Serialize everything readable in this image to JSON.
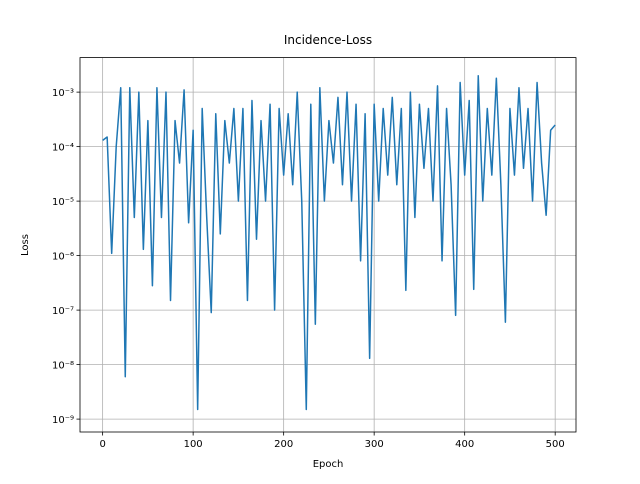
{
  "chart_data": {
    "type": "line",
    "title": "Incidence-Loss",
    "x_label": "Epoch",
    "y_label": "Loss",
    "x": [
      0,
      5,
      10,
      15,
      20,
      25,
      30,
      35,
      40,
      45,
      50,
      55,
      60,
      65,
      70,
      75,
      80,
      85,
      90,
      95,
      100,
      105,
      110,
      115,
      120,
      125,
      130,
      135,
      140,
      145,
      150,
      155,
      160,
      165,
      170,
      175,
      180,
      185,
      190,
      195,
      200,
      205,
      210,
      215,
      220,
      225,
      230,
      235,
      240,
      245,
      250,
      255,
      260,
      265,
      270,
      275,
      280,
      285,
      290,
      295,
      300,
      305,
      310,
      315,
      320,
      325,
      330,
      335,
      340,
      345,
      350,
      355,
      360,
      365,
      370,
      375,
      380,
      385,
      390,
      395,
      400,
      405,
      410,
      415,
      420,
      425,
      430,
      435,
      440,
      445,
      450,
      455,
      460,
      465,
      470,
      475,
      480,
      485,
      490,
      495,
      500
    ],
    "values": [
      0.00013,
      0.00015,
      1.1e-06,
      0.0001,
      0.0012,
      6e-09,
      0.0012,
      5e-06,
      0.001,
      1.3e-06,
      0.0003,
      2.8e-07,
      0.0012,
      5e-06,
      0.001,
      1.5e-07,
      0.0003,
      5e-05,
      0.0011,
      4e-06,
      0.0002,
      1.5e-09,
      0.0005,
      5e-06,
      9e-08,
      0.0004,
      2.5e-06,
      0.0003,
      5e-05,
      0.0005,
      1e-05,
      0.0005,
      1.5e-07,
      0.0007,
      2e-06,
      0.0003,
      1e-05,
      0.0006,
      1e-07,
      0.0005,
      3e-05,
      0.0004,
      2e-05,
      0.001,
      1e-05,
      1.5e-09,
      0.0006,
      5.5e-08,
      0.0012,
      1e-05,
      0.0003,
      5e-05,
      0.0008,
      2e-05,
      0.001,
      1e-05,
      0.0006,
      8e-07,
      0.0004,
      1.3e-08,
      0.0006,
      1e-05,
      0.0005,
      3e-05,
      0.0008,
      2e-05,
      0.0005,
      2.3e-07,
      0.001,
      5e-06,
      0.0006,
      4e-05,
      0.0005,
      1e-05,
      0.0013,
      8e-07,
      0.0005,
      2e-05,
      8e-08,
      0.0015,
      3e-05,
      0.0007,
      2.4e-07,
      0.002,
      1e-05,
      0.0005,
      3e-05,
      0.0018,
      2e-05,
      6e-08,
      0.0005,
      3e-05,
      0.0012,
      4e-05,
      0.0005,
      1e-05,
      0.0015,
      5e-05,
      5.5e-06,
      0.0002,
      0.00025
    ],
    "color": "#1f77b4",
    "xlim": [
      -25,
      523
    ],
    "xticks": [
      0,
      100,
      200,
      300,
      400,
      500
    ],
    "ylim": [
      5.8e-10,
      0.0043
    ],
    "log_y": true,
    "yticks": [
      {
        "value": 1e-09,
        "label": "10⁻⁹"
      },
      {
        "value": 1e-08,
        "label": "10⁻⁸"
      },
      {
        "value": 1e-07,
        "label": "10⁻⁷"
      },
      {
        "value": 1e-06,
        "label": "10⁻⁶"
      },
      {
        "value": 1e-05,
        "label": "10⁻⁵"
      },
      {
        "value": 0.0001,
        "label": "10⁻⁴"
      },
      {
        "value": 0.001,
        "label": "10⁻³"
      }
    ],
    "grid": true
  }
}
